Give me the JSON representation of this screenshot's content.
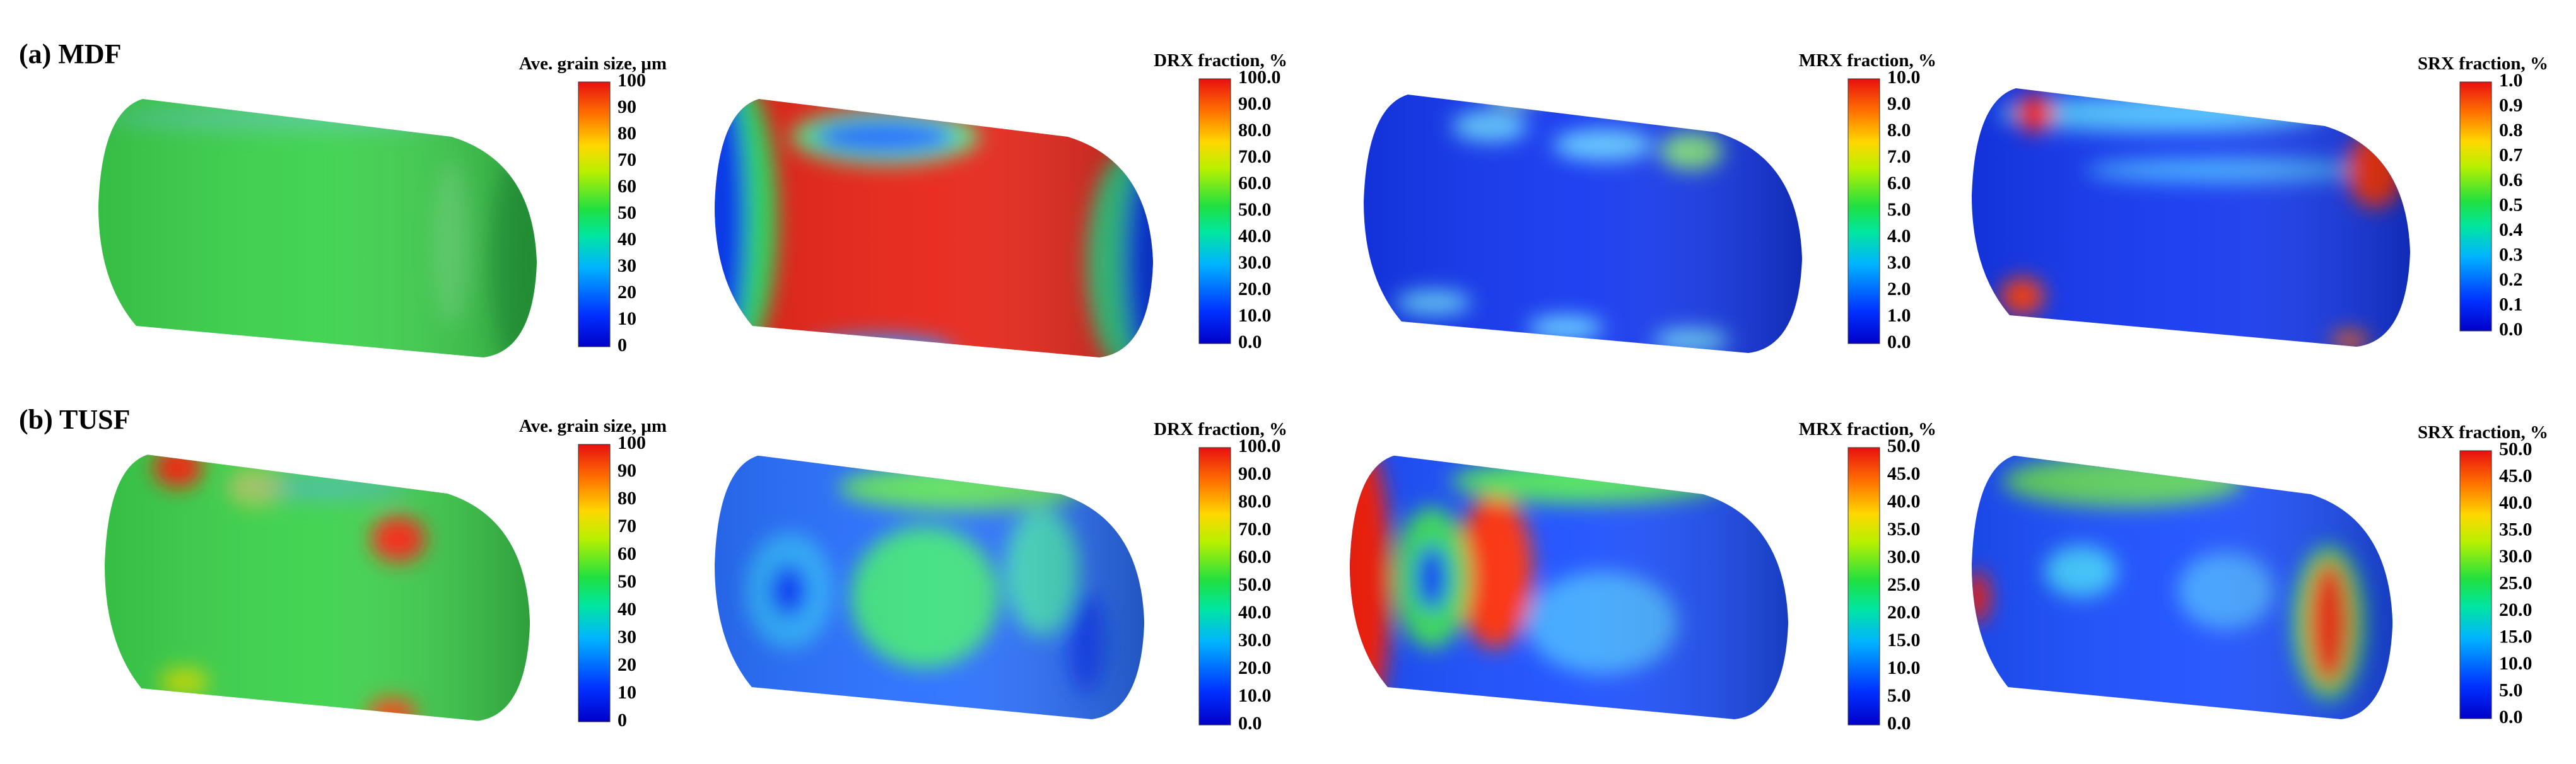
{
  "rows": [
    {
      "label": "(a) MDF",
      "panels": [
        {
          "title": "Ave. grain size, μm",
          "ticks": [
            "0",
            "10",
            "20",
            "30",
            "40",
            "50",
            "60",
            "70",
            "80",
            "90",
            "100"
          ]
        },
        {
          "title": "DRX fraction, %",
          "ticks": [
            "0.0",
            "10.0",
            "20.0",
            "30.0",
            "40.0",
            "50.0",
            "60.0",
            "70.0",
            "80.0",
            "90.0",
            "100.0"
          ]
        },
        {
          "title": "MRX fraction, %",
          "ticks": [
            "0.0",
            "1.0",
            "2.0",
            "3.0",
            "4.0",
            "5.0",
            "6.0",
            "7.0",
            "8.0",
            "9.0",
            "10.0"
          ]
        },
        {
          "title": "SRX fraction, %",
          "ticks": [
            "0.0",
            "0.1",
            "0.2",
            "0.3",
            "0.4",
            "0.5",
            "0.6",
            "0.7",
            "0.8",
            "0.9",
            "1.0"
          ]
        }
      ]
    },
    {
      "label": "(b) TUSF",
      "panels": [
        {
          "title": "Ave. grain size, μm",
          "ticks": [
            "0",
            "10",
            "20",
            "30",
            "40",
            "50",
            "60",
            "70",
            "80",
            "90",
            "100"
          ]
        },
        {
          "title": "DRX fraction, %",
          "ticks": [
            "0.0",
            "10.0",
            "20.0",
            "30.0",
            "40.0",
            "50.0",
            "60.0",
            "70.0",
            "80.0",
            "90.0",
            "100.0"
          ]
        },
        {
          "title": "MRX fraction, %",
          "ticks": [
            "0.0",
            "5.0",
            "10.0",
            "15.0",
            "20.0",
            "25.0",
            "30.0",
            "35.0",
            "40.0",
            "45.0",
            "50.0"
          ]
        },
        {
          "title": "SRX fraction, %",
          "ticks": [
            "0.0",
            "5.0",
            "10.0",
            "15.0",
            "20.0",
            "25.0",
            "30.0",
            "35.0",
            "40.0",
            "45.0",
            "50.0"
          ]
        }
      ]
    }
  ]
}
